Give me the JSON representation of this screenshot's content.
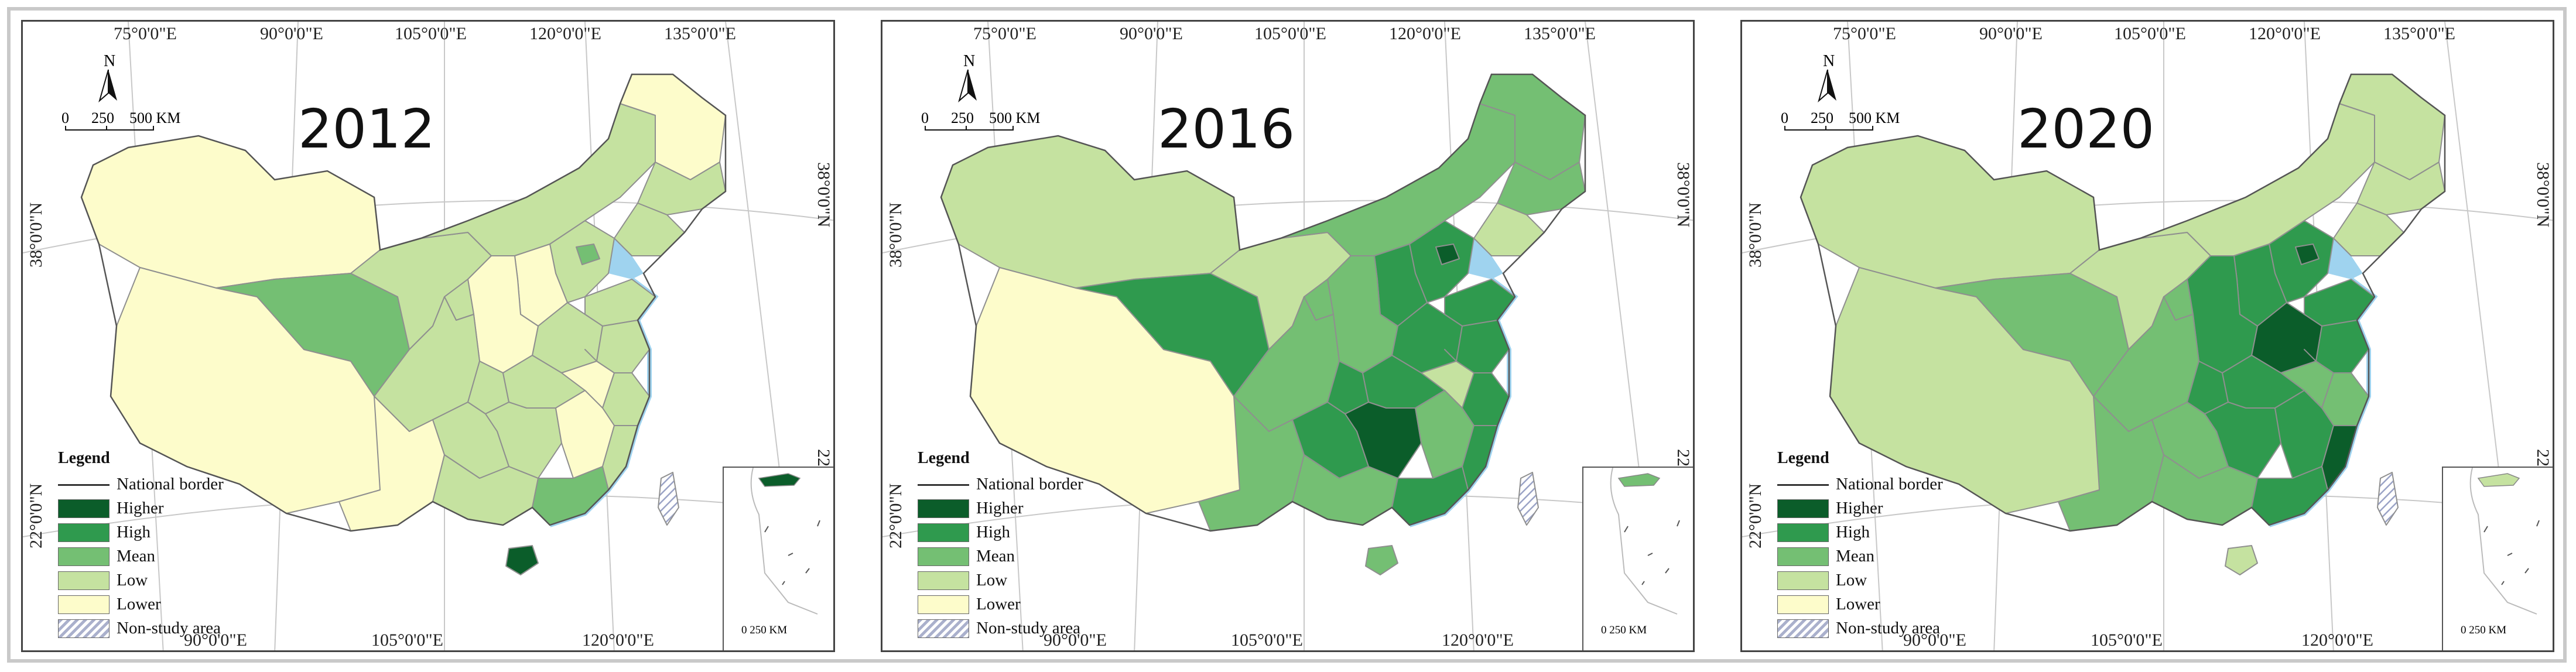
{
  "figure": {
    "panels": [
      {
        "year": "2012",
        "colors": {
          "xj": "lower",
          "tb": "lower",
          "qh": "mean",
          "gs": "low",
          "nm": "low",
          "hlj": "lower",
          "jl": "low",
          "ln": "low",
          "hb": "low",
          "bj": "mean",
          "sx": "lower",
          "sd": "low",
          "hn": "low",
          "sn": "lower",
          "nx": "low",
          "sc": "low",
          "cq": "low",
          "hub": "low",
          "ah": "lower",
          "js": "low",
          "zj": "low",
          "hun": "low",
          "jx": "lower",
          "fj": "low",
          "yn": "lower",
          "gz": "low",
          "gx": "low",
          "gd": "mean",
          "hi": "higher",
          "tw": "hatch"
        },
        "inset_island": "higher"
      },
      {
        "year": "2016",
        "colors": {
          "xj": "low",
          "tb": "lower",
          "qh": "high",
          "gs": "low",
          "nm": "mean",
          "hlj": "mean",
          "jl": "mean",
          "ln": "low",
          "hb": "high",
          "bj": "higher",
          "sx": "high",
          "sd": "high",
          "hn": "high",
          "sn": "mean",
          "nx": "mean",
          "sc": "mean",
          "cq": "high",
          "hub": "high",
          "ah": "low",
          "js": "high",
          "zj": "high",
          "hun": "higher",
          "jx": "mean",
          "fj": "high",
          "yn": "mean",
          "gz": "high",
          "gx": "mean",
          "gd": "high",
          "hi": "mean",
          "tw": "hatch"
        },
        "inset_island": "mean"
      },
      {
        "year": "2020",
        "colors": {
          "xj": "low",
          "tb": "low",
          "qh": "mean",
          "gs": "low",
          "nm": "low",
          "hlj": "low",
          "jl": "low",
          "ln": "low",
          "hb": "high",
          "bj": "higher",
          "sx": "high",
          "sd": "high",
          "hn": "higher",
          "sn": "high",
          "nx": "mean",
          "sc": "mean",
          "cq": "high",
          "hub": "high",
          "ah": "mean",
          "js": "high",
          "zj": "mean",
          "hun": "high",
          "jx": "high",
          "fj": "higher",
          "yn": "mean",
          "gz": "mean",
          "gx": "mean",
          "gd": "high",
          "hi": "low",
          "tw": "hatch"
        },
        "inset_island": "low"
      }
    ],
    "palette": {
      "higher": "#0b5d2a",
      "high": "#2f9a4e",
      "mean": "#74bf73",
      "low": "#c5e2a0",
      "lower": "#fdfccb",
      "water": "#9fd3ef"
    },
    "graticule": {
      "top": [
        "75°0'0\"E",
        "90°0'0\"E",
        "105°0'0\"E",
        "120°0'0\"E",
        "135°0'0\"E"
      ],
      "bottom": [
        "90°0'0\"E",
        "105°0'0\"E",
        "120°0'0\"E"
      ],
      "lat_38": "38°0'0\"N",
      "lat_22": "22°0'0\"N"
    },
    "north": "N",
    "scale": {
      "t0": "0",
      "t1": "250",
      "t2": "500 KM"
    },
    "inset_scale": "0  250 KM",
    "legend": {
      "title": "Legend",
      "border": "National border",
      "higher": "Higher",
      "high": "High",
      "mean": "Mean",
      "low": "Low",
      "lower": "Lower",
      "nonstudy": "Non-study area"
    }
  }
}
